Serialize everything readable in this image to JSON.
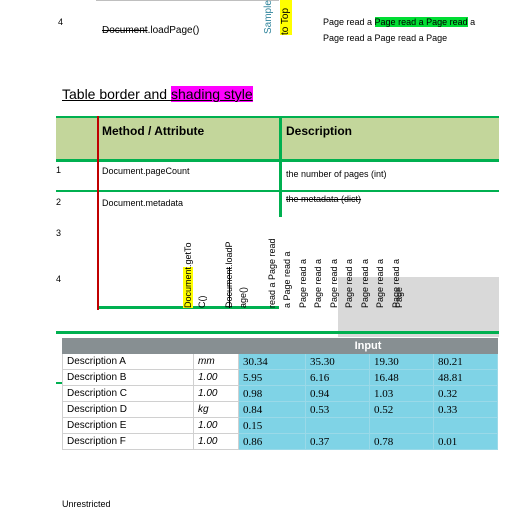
{
  "top": {
    "row_number": "4",
    "method_strike": "Document",
    "method_rest": ".loadPage()",
    "vertical_col1": "Sample",
    "vertical_col2": "to Top",
    "desc_line1_a": "Page read a ",
    "desc_line1_hl": "Page read a Page read",
    "desc_line1_b": " a",
    "desc_line2": "Page read a Page read a Page"
  },
  "heading": {
    "text_plain": "Table border and ",
    "text_highlight": "shading style"
  },
  "styled_table": {
    "header_method": "Method / Attribute",
    "header_description": "Description",
    "rows": [
      {
        "num": "1",
        "method": "Document.pageCount",
        "description": "the number of pages (int)"
      },
      {
        "num": "2",
        "method": "Document.metadata",
        "description": "the metadata (dict)"
      },
      {
        "num": "3"
      },
      {
        "num": "4"
      }
    ],
    "rotated": {
      "c1_hl": "Document",
      "c1_rest": ".getTo",
      "c2": "C()",
      "c3_strike": "Document",
      "c3_rest": ".loadP",
      "c4": "age()",
      "cols": [
        "read a Page read",
        "a Page read a",
        "Page read a",
        "Page read a",
        "Page read a",
        "Page read a",
        "Page read a",
        "Page read a",
        "Page read a",
        "Page"
      ]
    }
  },
  "input_table": {
    "title": "Input",
    "rows": [
      {
        "label": "Description A",
        "unit": "mm",
        "values": [
          "30.34",
          "35.30",
          "19.30",
          "80.21"
        ]
      },
      {
        "label": "Description B",
        "unit": "1.00",
        "values": [
          "5.95",
          "6.16",
          "16.48",
          "48.81"
        ]
      },
      {
        "label": "Description C",
        "unit": "1.00",
        "values": [
          "0.98",
          "0.94",
          "1.03",
          "0.32"
        ]
      },
      {
        "label": "Description D",
        "unit": "kg",
        "values": [
          "0.84",
          "0.53",
          "0.52",
          "0.33"
        ]
      },
      {
        "label": "Description E",
        "unit": "1.00",
        "values": [
          "0.15",
          "",
          "",
          ""
        ]
      },
      {
        "label": "Description F",
        "unit": "1.00",
        "values": [
          "0.86",
          "0.37",
          "0.78",
          "0.01"
        ]
      }
    ]
  },
  "footer": {
    "text": "Unrestricted"
  }
}
